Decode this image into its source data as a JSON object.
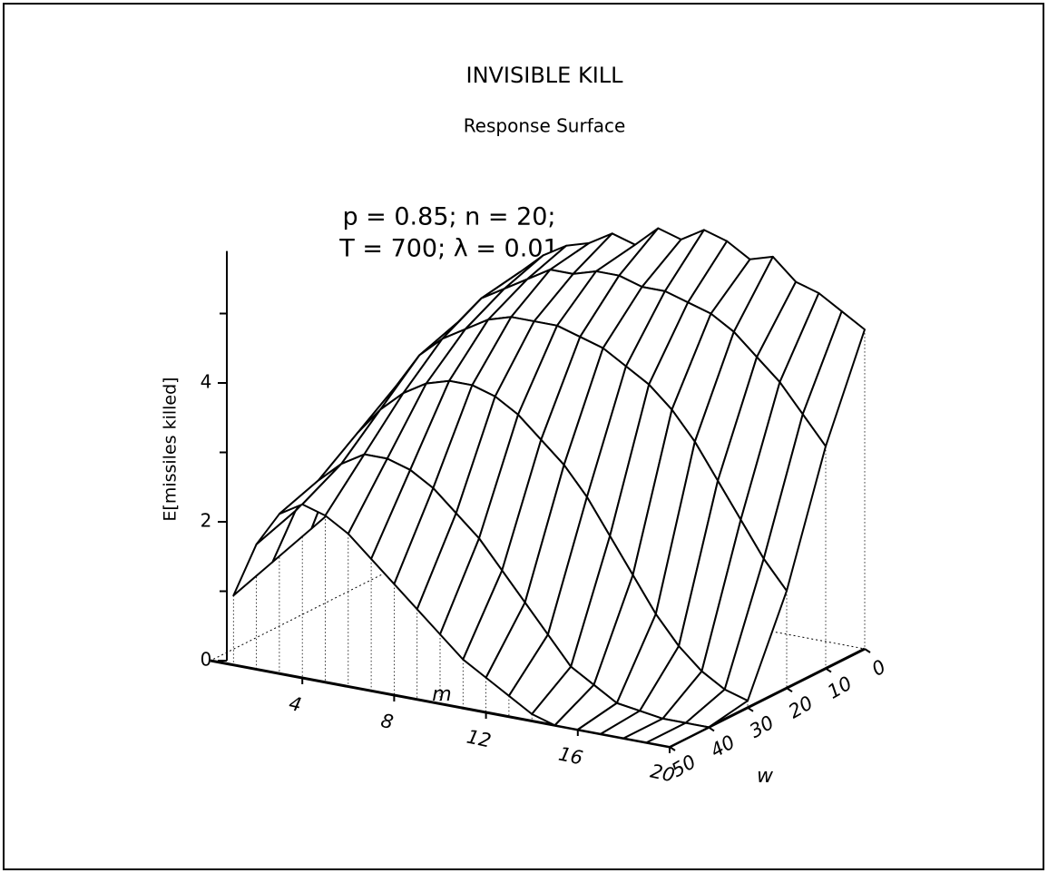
{
  "chart_data": {
    "type": "surface",
    "title": "INVISIBLE KILL",
    "subtitle": "Response Surface",
    "annotations": [
      "p = 0.85; n = 20;",
      "T = 700; λ = 0.01"
    ],
    "zlabel": "E[missiles killed]",
    "xlabel": "m",
    "ylabel": "w",
    "m": [
      1,
      2,
      3,
      4,
      5,
      6,
      7,
      8,
      9,
      10,
      11,
      12,
      13,
      14,
      15,
      16,
      17,
      18,
      19,
      20
    ],
    "w": [
      0,
      10,
      20,
      30,
      40,
      50
    ],
    "z": [
      [
        2.0,
        3.0,
        3.7,
        4.2,
        4.5,
        4.8,
        5.0,
        5.1,
        5.3,
        5.2,
        5.5,
        5.4,
        5.6,
        5.5,
        5.3,
        5.4,
        5.1,
        5.0,
        4.8,
        4.6
      ],
      [
        1.8,
        2.8,
        3.5,
        4.0,
        4.4,
        4.6,
        4.8,
        5.0,
        5.0,
        5.1,
        5.1,
        5.0,
        5.0,
        4.9,
        4.8,
        4.6,
        4.3,
        4.0,
        3.6,
        3.2
      ],
      [
        1.6,
        2.6,
        3.3,
        3.8,
        4.1,
        4.3,
        4.5,
        4.6,
        4.6,
        4.6,
        4.5,
        4.4,
        4.2,
        4.0,
        3.7,
        3.3,
        2.8,
        2.3,
        1.8,
        1.4
      ],
      [
        1.4,
        2.3,
        2.9,
        3.3,
        3.6,
        3.8,
        3.9,
        3.9,
        3.8,
        3.6,
        3.3,
        3.0,
        2.6,
        2.1,
        1.6,
        1.1,
        0.7,
        0.4,
        0.2,
        0.1
      ],
      [
        1.2,
        2.0,
        2.5,
        2.8,
        3.0,
        3.0,
        2.9,
        2.7,
        2.4,
        2.1,
        1.7,
        1.3,
        0.9,
        0.5,
        0.3,
        0.1,
        0.05,
        0,
        0,
        0
      ],
      [
        1.0,
        1.8,
        2.3,
        2.5,
        2.4,
        2.2,
        1.9,
        1.6,
        1.3,
        1.0,
        0.7,
        0.5,
        0.3,
        0.1,
        0,
        0,
        0,
        0,
        0,
        0
      ]
    ],
    "mlim": [
      0,
      20
    ],
    "mticks": [
      4,
      8,
      12,
      16,
      20
    ],
    "wlim": [
      0,
      50
    ],
    "wticks": [
      0,
      10,
      20,
      30,
      40,
      50
    ],
    "zticks": [
      0,
      2,
      4
    ],
    "zminorticks": [
      1,
      3,
      5
    ],
    "color": "#ffffff",
    "line_color": "#000000"
  }
}
